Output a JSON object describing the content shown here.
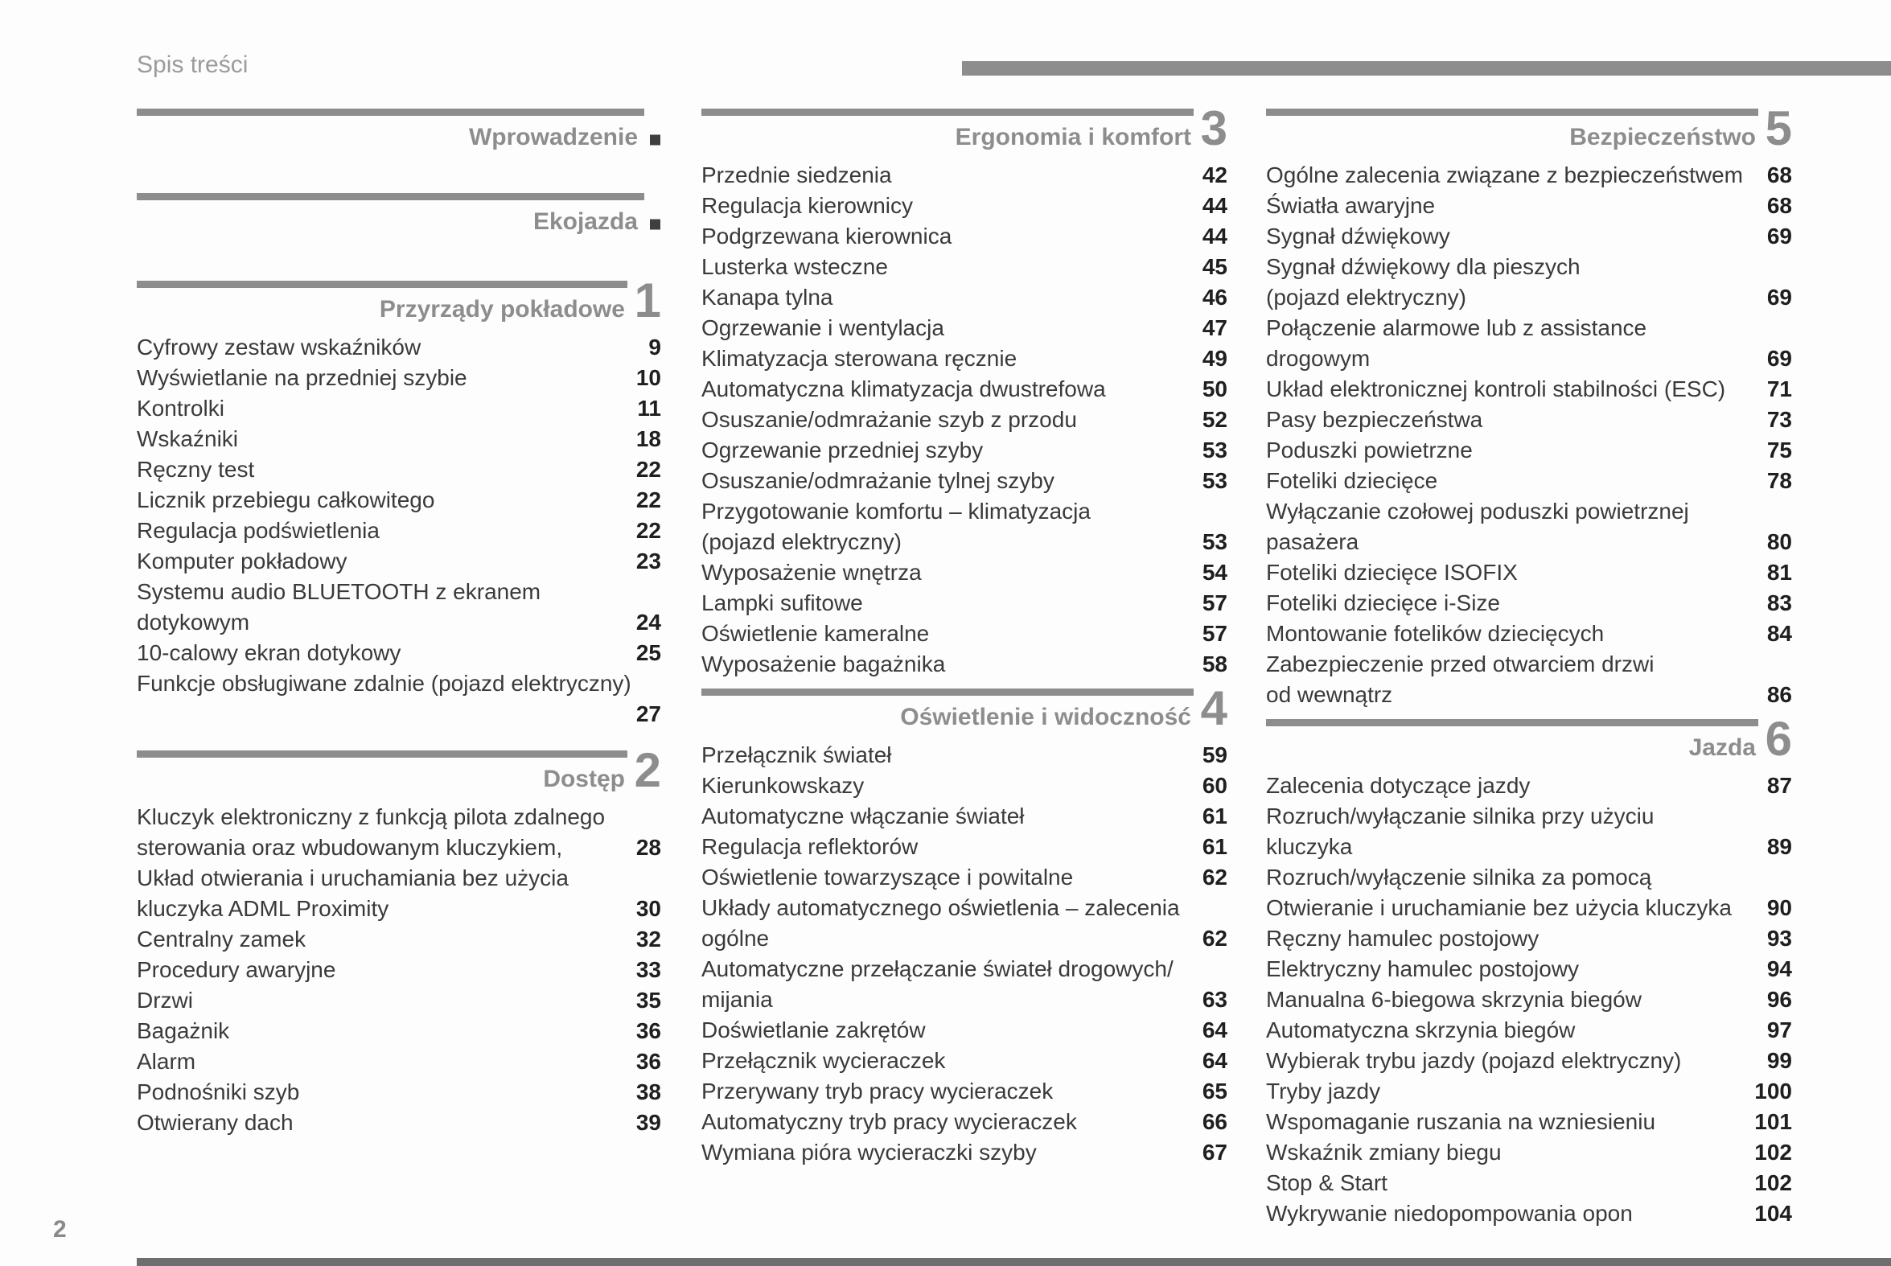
{
  "page": {
    "title": "Spis treści",
    "page_number": "2"
  },
  "colors": {
    "accent": "#8d8d8d",
    "text": "#3a3a3a",
    "page_num": "#1f1f1f",
    "marker": "#3f3f3f"
  },
  "columns": [
    {
      "blocks": [
        {
          "type": "tab",
          "title": "Wprowadzenie",
          "marker": "square"
        },
        {
          "type": "tab",
          "title": "Ekojazda",
          "marker": "square"
        },
        {
          "type": "section",
          "number": "1",
          "title": "Przyrządy pokładowe",
          "rows": [
            {
              "text": "Cyfrowy zestaw wskaźników",
              "page": "9"
            },
            {
              "text": "Wyświetlanie na przedniej szybie",
              "page": "10"
            },
            {
              "text": "Kontrolki",
              "page": "11"
            },
            {
              "text": "Wskaźniki",
              "page": "18"
            },
            {
              "text": "Ręczny test",
              "page": "22"
            },
            {
              "text": "Licznik przebiegu całkowitego",
              "page": "22"
            },
            {
              "text": "Regulacja podświetlenia",
              "page": "22"
            },
            {
              "text": "Komputer pokładowy",
              "page": "23"
            },
            {
              "text": "Systemu audio BLUETOOTH z ekranem",
              "page": ""
            },
            {
              "text": "dotykowym",
              "page": "24"
            },
            {
              "text": "10-calowy ekran dotykowy",
              "page": "25"
            },
            {
              "text": "Funkcje obsługiwane zdalnie (pojazd elektryczny)",
              "page": ""
            },
            {
              "text": "",
              "page": "27"
            }
          ]
        },
        {
          "type": "section",
          "number": "2",
          "title": "Dostęp",
          "rows": [
            {
              "text": "Kluczyk elektroniczny z funkcją pilota zdalnego",
              "page": ""
            },
            {
              "text": "sterowania oraz wbudowanym kluczykiem,",
              "page": "28"
            },
            {
              "text": "Układ otwierania i uruchamiania bez użycia",
              "page": ""
            },
            {
              "text": "kluczyka ADML Proximity",
              "page": "30"
            },
            {
              "text": "Centralny zamek",
              "page": "32"
            },
            {
              "text": "Procedury awaryjne",
              "page": "33"
            },
            {
              "text": "Drzwi",
              "page": "35"
            },
            {
              "text": "Bagażnik",
              "page": "36"
            },
            {
              "text": "Alarm",
              "page": "36"
            },
            {
              "text": "Podnośniki szyb",
              "page": "38"
            },
            {
              "text": "Otwierany dach",
              "page": "39"
            }
          ]
        }
      ]
    },
    {
      "blocks": [
        {
          "type": "section",
          "number": "3",
          "title": "Ergonomia i komfort",
          "rows": [
            {
              "text": "Przednie siedzenia",
              "page": "42"
            },
            {
              "text": "Regulacja kierownicy",
              "page": "44"
            },
            {
              "text": "Podgrzewana kierownica",
              "page": "44"
            },
            {
              "text": "Lusterka wsteczne",
              "page": "45"
            },
            {
              "text": "Kanapa tylna",
              "page": "46"
            },
            {
              "text": "Ogrzewanie i wentylacja",
              "page": "47"
            },
            {
              "text": "Klimatyzacja sterowana ręcznie",
              "page": "49"
            },
            {
              "text": "Automatyczna klimatyzacja dwustrefowa",
              "page": "50"
            },
            {
              "text": "Osuszanie/odmrażanie szyb z przodu",
              "page": "52"
            },
            {
              "text": "Ogrzewanie przedniej szyby",
              "page": "53"
            },
            {
              "text": "Osuszanie/odmrażanie tylnej szyby",
              "page": "53"
            },
            {
              "text": "Przygotowanie komfortu – klimatyzacja",
              "page": ""
            },
            {
              "text": "(pojazd elektryczny)",
              "page": "53"
            },
            {
              "text": "Wyposażenie wnętrza",
              "page": "54"
            },
            {
              "text": "Lampki sufitowe",
              "page": "57"
            },
            {
              "text": "Oświetlenie kameralne",
              "page": "57"
            },
            {
              "text": "Wyposażenie bagażnika",
              "page": "58"
            }
          ]
        },
        {
          "type": "section",
          "number": "4",
          "title": "Oświetlenie i widoczność",
          "rows": [
            {
              "text": "Przełącznik świateł",
              "page": "59"
            },
            {
              "text": "Kierunkowskazy",
              "page": "60"
            },
            {
              "text": "Automatyczne włączanie świateł",
              "page": "61"
            },
            {
              "text": "Regulacja reflektorów",
              "page": "61"
            },
            {
              "text": "Oświetlenie towarzyszące i powitalne",
              "page": "62"
            },
            {
              "text": "Układy automatycznego oświetlenia – zalecenia",
              "page": ""
            },
            {
              "text": "ogólne",
              "page": "62"
            },
            {
              "text": "Automatyczne przełączanie świateł drogowych/",
              "page": ""
            },
            {
              "text": "mijania",
              "page": "63"
            },
            {
              "text": "Doświetlanie zakrętów",
              "page": "64"
            },
            {
              "text": "Przełącznik wycieraczek",
              "page": "64"
            },
            {
              "text": "Przerywany tryb pracy wycieraczek",
              "page": "65"
            },
            {
              "text": "Automatyczny tryb pracy wycieraczek",
              "page": "66"
            },
            {
              "text": "Wymiana pióra wycieraczki szyby",
              "page": "67"
            }
          ]
        }
      ]
    },
    {
      "blocks": [
        {
          "type": "section",
          "number": "5",
          "title": "Bezpieczeństwo",
          "rows": [
            {
              "text": "Ogólne zalecenia związane z bezpieczeństwem",
              "page": "68"
            },
            {
              "text": "Światła awaryjne",
              "page": "68"
            },
            {
              "text": "Sygnał dźwiękowy",
              "page": "69"
            },
            {
              "text": "Sygnał dźwiękowy dla pieszych",
              "page": ""
            },
            {
              "text": "(pojazd elektryczny)",
              "page": "69"
            },
            {
              "text": "Połączenie alarmowe lub z assistance",
              "page": ""
            },
            {
              "text": "drogowym",
              "page": "69"
            },
            {
              "text": "Układ elektronicznej kontroli stabilności (ESC)",
              "page": "71"
            },
            {
              "text": "Pasy bezpieczeństwa",
              "page": "73"
            },
            {
              "text": "Poduszki powietrzne",
              "page": "75"
            },
            {
              "text": "Foteliki dziecięce",
              "page": "78"
            },
            {
              "text": "Wyłączanie czołowej poduszki powietrznej",
              "page": ""
            },
            {
              "text": "pasażera",
              "page": "80"
            },
            {
              "text": "Foteliki dziecięce ISOFIX",
              "page": "81"
            },
            {
              "text": "Foteliki dziecięce i-Size",
              "page": "83"
            },
            {
              "text": "Montowanie fotelików dziecięcych",
              "page": "84"
            },
            {
              "text": "Zabezpieczenie przed otwarciem drzwi",
              "page": ""
            },
            {
              "text": "od wewnątrz",
              "page": "86"
            }
          ]
        },
        {
          "type": "section",
          "number": "6",
          "title": "Jazda",
          "rows": [
            {
              "text": "Zalecenia dotyczące jazdy",
              "page": "87"
            },
            {
              "text": "Rozruch/wyłączanie silnika przy użyciu",
              "page": ""
            },
            {
              "text": "kluczyka",
              "page": "89"
            },
            {
              "text": "Rozruch/wyłączenie silnika za pomocą",
              "page": ""
            },
            {
              "text": "Otwieranie i uruchamianie bez użycia kluczyka",
              "page": "90"
            },
            {
              "text": "Ręczny hamulec postojowy",
              "page": "93"
            },
            {
              "text": "Elektryczny hamulec postojowy",
              "page": "94"
            },
            {
              "text": "Manualna 6-biegowa skrzynia biegów",
              "page": "96"
            },
            {
              "text": "Automatyczna skrzynia biegów",
              "page": "97"
            },
            {
              "text": "Wybierak trybu jazdy (pojazd elektryczny)",
              "page": "99"
            },
            {
              "text": "Tryby jazdy",
              "page": "100"
            },
            {
              "text": "Wspomaganie ruszania na wzniesieniu",
              "page": "101"
            },
            {
              "text": "Wskaźnik zmiany biegu",
              "page": "102"
            },
            {
              "text": "Stop & Start",
              "page": "102"
            },
            {
              "text": "Wykrywanie niedopompowania opon",
              "page": "104"
            }
          ]
        }
      ]
    }
  ]
}
